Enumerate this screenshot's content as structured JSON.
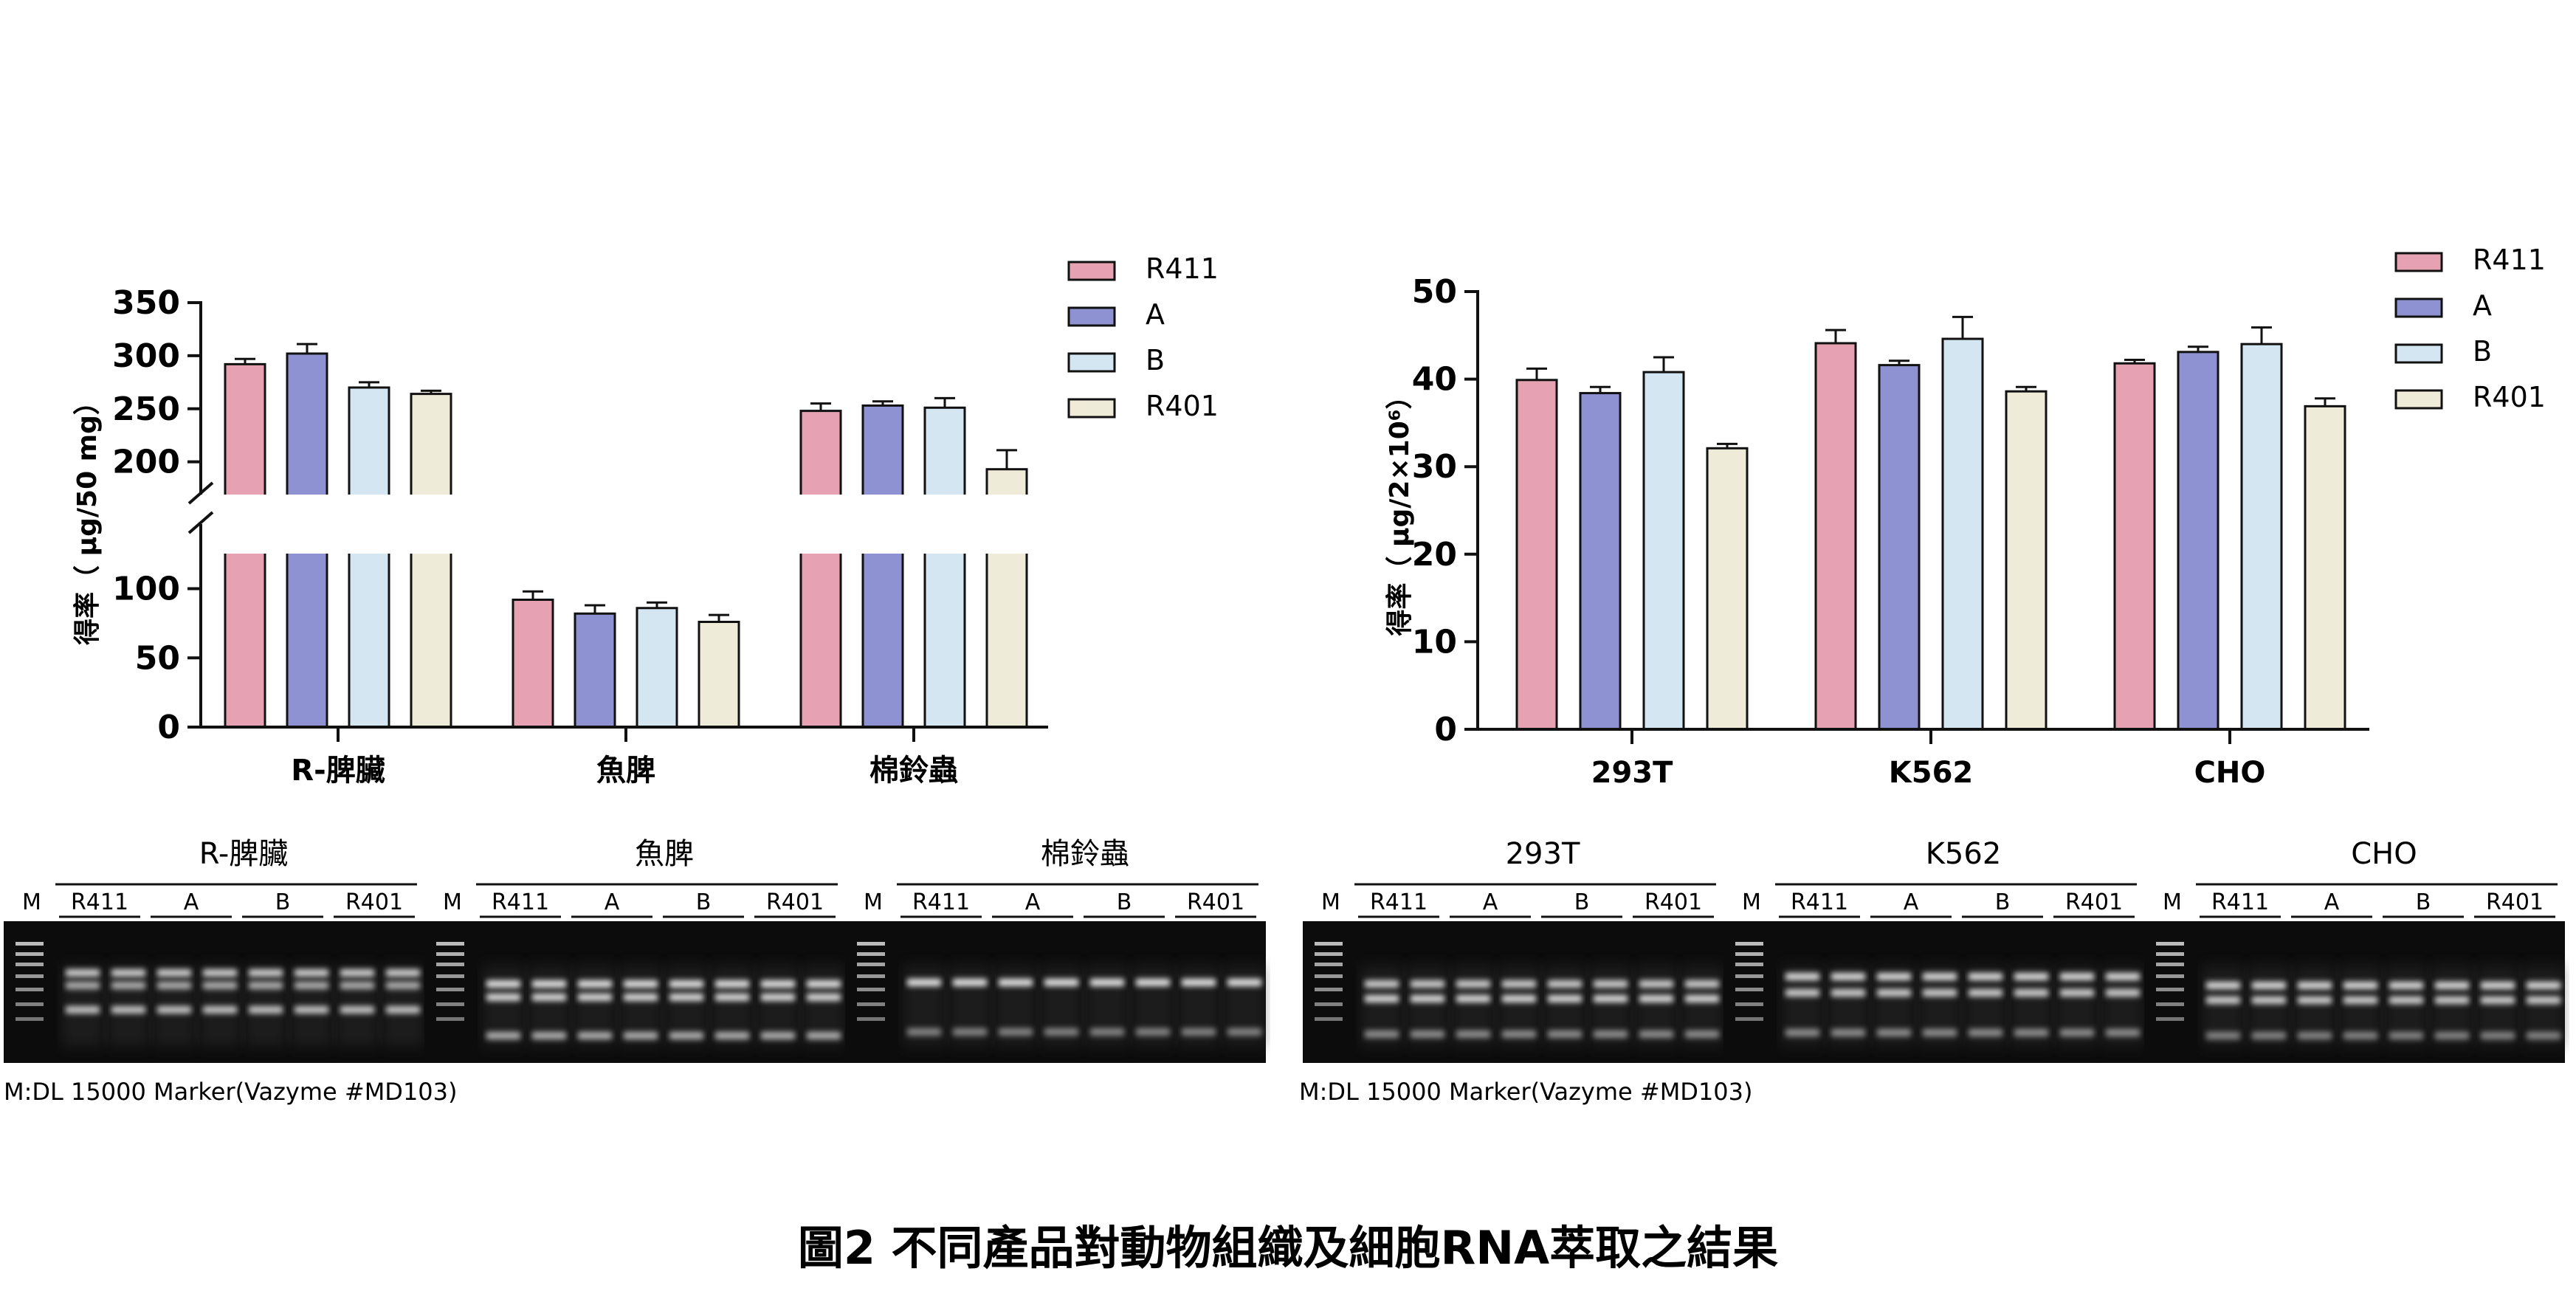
{
  "colors": {
    "R411": "#e6a2b2",
    "A": "#8f92d2",
    "B": "#d4e6f1",
    "R401": "#efebd9"
  },
  "chart_data": [
    {
      "type": "bar",
      "xlabel": "",
      "ylabel": "得率（ μg/50 mg）",
      "categories": [
        "R-脾臟",
        "魚脾",
        "棉鈴蟲"
      ],
      "series": [
        {
          "name": "R411",
          "values": [
            292,
            92,
            248
          ],
          "errors": [
            5,
            6,
            7
          ]
        },
        {
          "name": "A",
          "values": [
            302,
            82,
            253
          ],
          "errors": [
            9,
            6,
            4
          ]
        },
        {
          "name": "B",
          "values": [
            270,
            86,
            251
          ],
          "errors": [
            5,
            4,
            9
          ]
        },
        {
          "name": "R401",
          "values": [
            264,
            76,
            193
          ],
          "errors": [
            3,
            5,
            18
          ]
        }
      ],
      "axis_break": [
        120,
        190
      ],
      "yticks": [
        "0",
        "50",
        "100",
        "200",
        "250",
        "300",
        "350"
      ],
      "ylim": [
        0,
        350
      ],
      "legend": [
        "R411",
        "A",
        "B",
        "R401"
      ],
      "legend_position": "top-right"
    },
    {
      "type": "bar",
      "xlabel": "",
      "ylabel": "得率（ μg/2×10⁶）",
      "categories": [
        "293T",
        "K562",
        "CHO"
      ],
      "series": [
        {
          "name": "R411",
          "values": [
            39.9,
            44.1,
            41.8
          ],
          "errors": [
            1.3,
            1.5,
            0.4
          ]
        },
        {
          "name": "A",
          "values": [
            38.4,
            41.6,
            43.1
          ],
          "errors": [
            0.7,
            0.5,
            0.6
          ]
        },
        {
          "name": "B",
          "values": [
            40.8,
            44.6,
            44.0
          ],
          "errors": [
            1.7,
            2.5,
            1.9
          ]
        },
        {
          "name": "R401",
          "values": [
            32.1,
            38.6,
            36.9
          ],
          "errors": [
            0.5,
            0.5,
            0.9
          ]
        }
      ],
      "yticks": [
        "0",
        "10",
        "20",
        "30",
        "40",
        "50"
      ],
      "ylim": [
        0,
        50
      ],
      "legend": [
        "R411",
        "A",
        "B",
        "R401"
      ],
      "legend_position": "top-right"
    }
  ],
  "gels": {
    "left": {
      "panels": [
        "R-脾臟",
        "魚脾",
        "棉鈴蟲"
      ],
      "marker_note": "M:DL 15000 Marker(Vazyme #MD103)"
    },
    "right": {
      "panels": [
        "293T",
        "K562",
        "CHO"
      ],
      "marker_note": "M:DL 15000 Marker(Vazyme #MD103)"
    },
    "marker_label": "M",
    "group_labels": [
      "R411",
      "A",
      "B",
      "R401"
    ]
  },
  "caption": "圖2 不同產品對動物組織及細胞RNA萃取之結果"
}
